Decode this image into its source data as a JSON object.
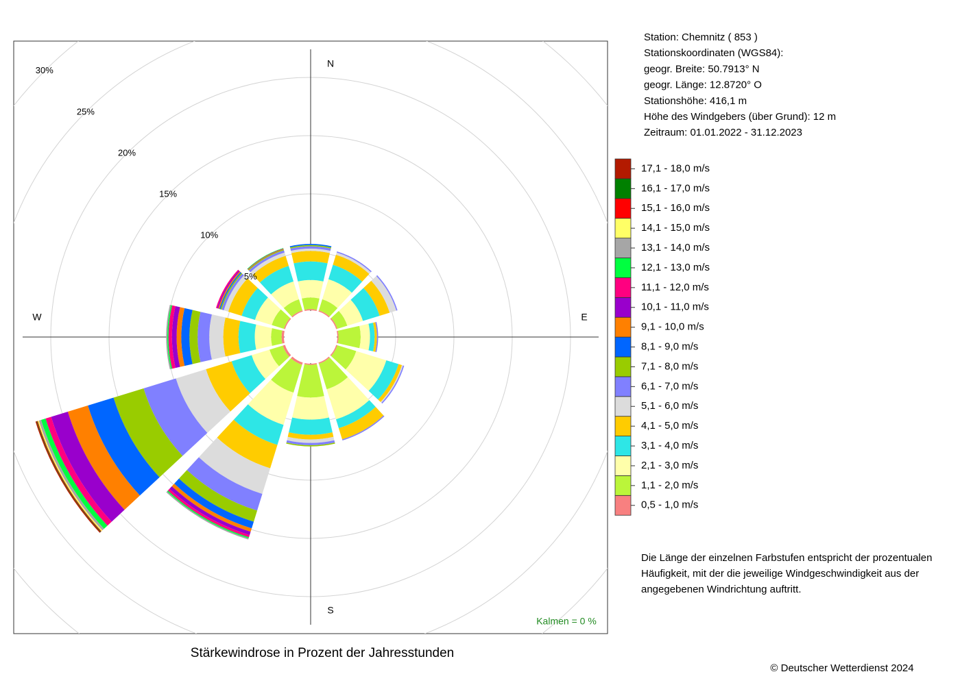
{
  "chart_data": {
    "type": "windrose",
    "title": "Stärkewindrose in Prozent der Jahresstunden",
    "categories": [
      "N",
      null,
      null,
      "E",
      null,
      null,
      "S",
      null,
      null,
      "W",
      null,
      null
    ],
    "rlim": [
      0,
      30
    ],
    "rticks": [
      {
        "value": 5,
        "label": "5%"
      },
      {
        "value": 10,
        "label": "10%"
      },
      {
        "value": 15,
        "label": "15%"
      },
      {
        "value": 20,
        "label": "20%"
      },
      {
        "value": 25,
        "label": "25%"
      },
      {
        "value": 30,
        "label": "30%"
      }
    ],
    "grid": true,
    "calm_text": "Kalmen  =  0 %",
    "series": [
      {
        "name": "0,5 - 1,0 m/s",
        "color": "#f88080",
        "values": [
          0.1,
          0.1,
          0.1,
          0.1,
          0.1,
          0.1,
          0.1,
          0.2,
          0.2,
          0.2,
          0.1,
          0.1
        ]
      },
      {
        "name": "1,1 - 2,0 m/s",
        "color": "#bbf53a",
        "values": [
          1.0,
          1.0,
          0.9,
          1.9,
          1.7,
          2.3,
          2.8,
          2.5,
          1.2,
          0.9,
          1.1,
          1.0
        ]
      },
      {
        "name": "2,1 - 3,0 m/s",
        "color": "#ffffaa",
        "values": [
          1.5,
          1.8,
          1.4,
          0.8,
          2.7,
          2.7,
          1.9,
          2.9,
          1.6,
          1.4,
          1.5,
          1.6
        ]
      },
      {
        "name": "3,1 - 4,0 m/s",
        "color": "#2ee6e6",
        "values": [
          1.6,
          1.3,
          1.5,
          0.4,
          1.1,
          0.8,
          1.3,
          1.8,
          1.8,
          1.4,
          1.2,
          1.4
        ]
      },
      {
        "name": "4,1 - 5,0 m/s",
        "color": "#ffcc00",
        "values": [
          0.9,
          0.9,
          0.9,
          0.2,
          0.3,
          1.0,
          0.4,
          2.1,
          2.3,
          1.3,
          1.2,
          0.9
        ]
      },
      {
        "name": "5,1 - 6,0 m/s",
        "color": "#dcdcdc",
        "values": [
          0.2,
          0.2,
          0.6,
          0,
          0.1,
          0,
          0.3,
          2.3,
          2.7,
          1.2,
          0.4,
          0.3
        ]
      },
      {
        "name": "6,1 - 7,0 m/s",
        "color": "#8080ff",
        "values": [
          0.2,
          0.1,
          0.1,
          0.1,
          0.1,
          0.1,
          0.2,
          1.5,
          2.9,
          1.0,
          0.2,
          0.2
        ]
      },
      {
        "name": "7,1 - 8,0 m/s",
        "color": "#99cc00",
        "values": [
          0.1,
          0,
          0,
          0,
          0,
          0,
          0.1,
          1.0,
          2.7,
          0.7,
          0.1,
          0.1
        ]
      },
      {
        "name": "8,1 - 9,0 m/s",
        "color": "#0066ff",
        "values": [
          0.1,
          0,
          0,
          0,
          0,
          0,
          0,
          0.6,
          2.3,
          0.7,
          0.1,
          0
        ]
      },
      {
        "name": "9,1 - 10,0 m/s",
        "color": "#ff8000",
        "values": [
          0,
          0,
          0,
          0,
          0,
          0,
          0,
          0.3,
          1.8,
          0.4,
          0.1,
          0
        ]
      },
      {
        "name": "10,1 - 11,0 m/s",
        "color": "#9900cc",
        "values": [
          0,
          0,
          0,
          0,
          0,
          0,
          0,
          0.3,
          1.5,
          0.4,
          0.1,
          0
        ]
      },
      {
        "name": "11,1 - 12,0 m/s",
        "color": "#ff0080",
        "values": [
          0,
          0,
          0,
          0,
          0,
          0,
          0,
          0.2,
          0.5,
          0.3,
          0.1,
          0.05
        ]
      },
      {
        "name": "12,1 - 13,0 m/s",
        "color": "#00ff40",
        "values": [
          0,
          0,
          0,
          0,
          0,
          0,
          0,
          0.1,
          0.4,
          0.1,
          0,
          0.05
        ]
      },
      {
        "name": "13,1 - 14,0 m/s",
        "color": "#a6a6a6",
        "values": [
          0,
          0,
          0,
          0,
          0,
          0,
          0,
          0.1,
          0.2,
          0.1,
          0,
          0
        ]
      },
      {
        "name": "14,1 - 15,0 m/s",
        "color": "#ffff66",
        "values": [
          0,
          0,
          0,
          0,
          0,
          0,
          0,
          0,
          0.1,
          0,
          0,
          0
        ]
      },
      {
        "name": "15,1 - 16,0 m/s",
        "color": "#ff0000",
        "values": [
          0,
          0,
          0,
          0,
          0,
          0,
          0,
          0,
          0.05,
          0,
          0,
          0
        ]
      },
      {
        "name": "16,1 - 17,0 m/s",
        "color": "#008000",
        "values": [
          0,
          0,
          0,
          0,
          0,
          0,
          0,
          0,
          0.05,
          0,
          0,
          0
        ]
      },
      {
        "name": "17,1 - 18,0 m/s",
        "color": "#b31a00",
        "values": [
          0,
          0,
          0,
          0,
          0,
          0,
          0,
          0,
          0.1,
          0,
          0,
          0
        ]
      }
    ]
  },
  "info": [
    "Station:  Chemnitz  ( 853 )",
    "Stationskoordinaten (WGS84):",
    "geogr. Breite: 50.7913° N",
    "geogr. Länge: 12.8720° O",
    "Stationshöhe: 416,1 m",
    "Höhe des Windgebers (über Grund): 12 m",
    "Zeitraum: 01.01.2022 - 31.12.2023"
  ],
  "note": [
    "Die Länge der einzelnen Farbstufen entspricht der prozentualen",
    "Häufigkeit, mit der die jeweilige Windgeschwindigkeit aus der",
    "angegebenen Windrichtung auftritt."
  ],
  "copyright": "© Deutscher Wetterdienst  2024"
}
